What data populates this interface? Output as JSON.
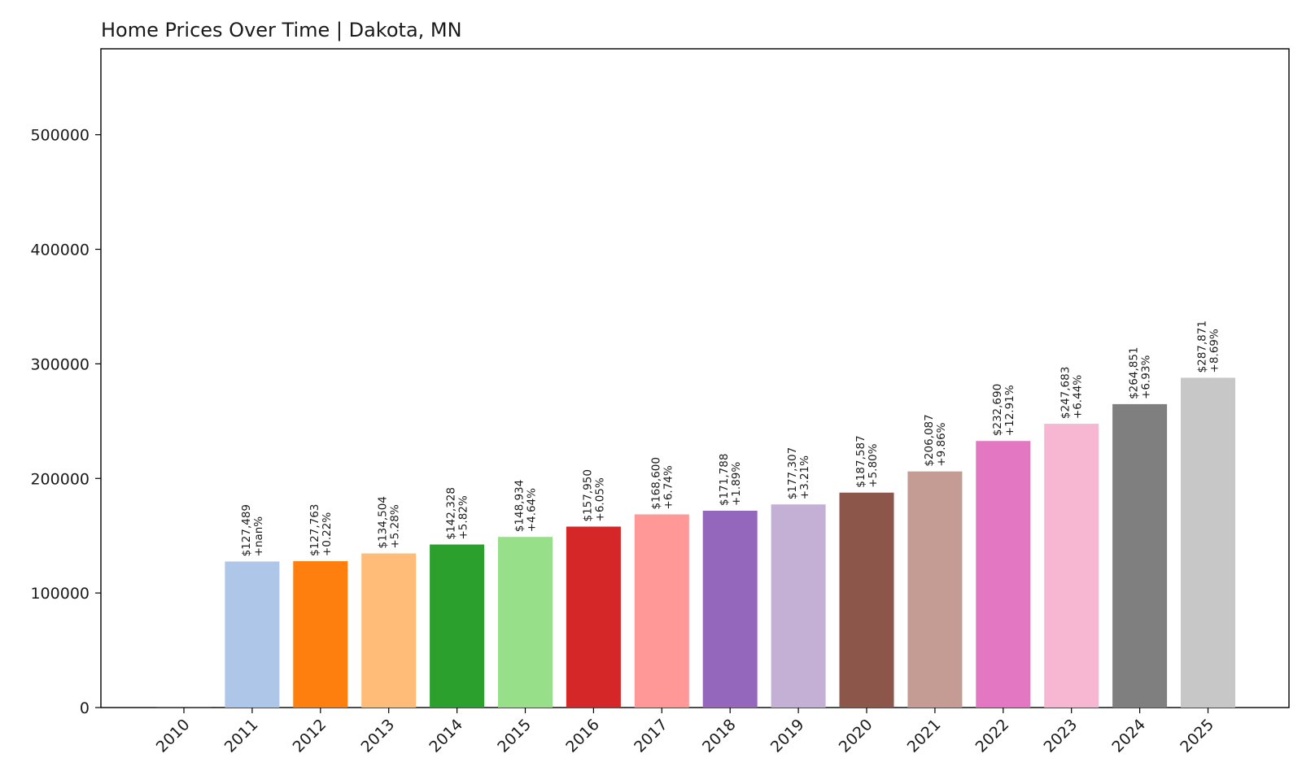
{
  "chart_data": {
    "type": "bar",
    "title": "Home Prices Over Time | Dakota, MN",
    "xlabel": "",
    "ylabel": "",
    "ylim": [
      0,
      575000
    ],
    "yticks": [
      "0",
      "100000",
      "200000",
      "300000",
      "400000",
      "500000"
    ],
    "grid": false,
    "categories": [
      "2010",
      "2011",
      "2012",
      "2013",
      "2014",
      "2015",
      "2016",
      "2017",
      "2018",
      "2019",
      "2020",
      "2021",
      "2022",
      "2023",
      "2024",
      "2025"
    ],
    "values": [
      0,
      127489,
      127763,
      134504,
      142328,
      148934,
      157950,
      168600,
      171788,
      177307,
      187587,
      206087,
      232690,
      247683,
      264851,
      287871
    ],
    "value_labels": [
      "",
      "$127,489",
      "$127,763",
      "$134,504",
      "$142,328",
      "$148,934",
      "$157,950",
      "$168,600",
      "$171,788",
      "$177,307",
      "$187,587",
      "$206,087",
      "$232,690",
      "$247,683",
      "$264,851",
      "$287,871"
    ],
    "change_labels": [
      "",
      "+nan%",
      "+0.22%",
      "+5.28%",
      "+5.82%",
      "+4.64%",
      "+6.05%",
      "+6.74%",
      "+1.89%",
      "+3.21%",
      "+5.80%",
      "+9.86%",
      "+12.91%",
      "+6.44%",
      "+6.93%",
      "+8.69%"
    ],
    "colors": [
      "#1f77b4",
      "#aec7e8",
      "#ff7f0e",
      "#ffbb78",
      "#2ca02c",
      "#98df8a",
      "#d62728",
      "#ff9896",
      "#9467bd",
      "#c5b0d5",
      "#8c564b",
      "#c49c94",
      "#e377c2",
      "#f7b6d2",
      "#7f7f7f",
      "#c7c7c7"
    ]
  }
}
